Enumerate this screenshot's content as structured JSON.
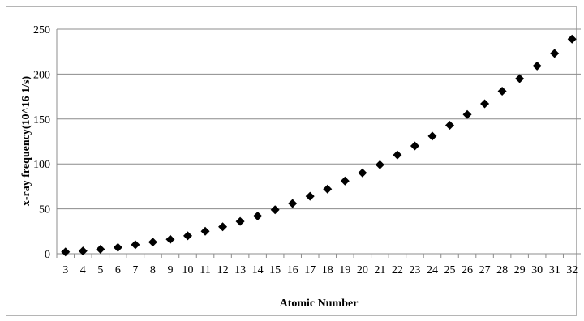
{
  "chart_data": {
    "type": "scatter",
    "title": "",
    "xlabel": "Atomic Number",
    "ylabel": "x-ray frequency(10^16 1/s)",
    "x": [
      3,
      4,
      5,
      6,
      7,
      8,
      9,
      10,
      11,
      12,
      13,
      14,
      15,
      16,
      17,
      18,
      19,
      20,
      21,
      22,
      23,
      24,
      25,
      26,
      27,
      28,
      29,
      30,
      31,
      32
    ],
    "y": [
      2,
      3,
      5,
      7,
      10,
      13,
      16,
      20,
      25,
      30,
      36,
      42,
      49,
      56,
      64,
      72,
      81,
      90,
      99,
      110,
      120,
      131,
      143,
      155,
      167,
      181,
      195,
      209,
      223,
      239
    ],
    "xticks": [
      "3",
      "4",
      "5",
      "6",
      "7",
      "8",
      "9",
      "10",
      "11",
      "12",
      "13",
      "14",
      "15",
      "16",
      "17",
      "18",
      "19",
      "20",
      "21",
      "22",
      "23",
      "24",
      "25",
      "26",
      "27",
      "28",
      "29",
      "30",
      "31",
      "32"
    ],
    "yticks": [
      "0",
      "50",
      "100",
      "150",
      "200",
      "250"
    ],
    "ylim": [
      0,
      250
    ],
    "grid": "horizontal",
    "legend": "none",
    "marker": "diamond",
    "marker_color": "#000000"
  }
}
